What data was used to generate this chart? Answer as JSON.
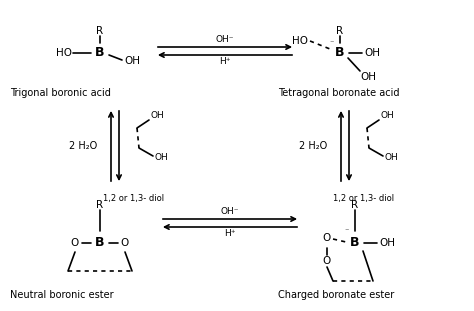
{
  "bg_color": "#ffffff",
  "text_color": "#000000",
  "figsize": [
    4.74,
    3.11
  ],
  "dpi": 100,
  "structures": {
    "trigonal_label": "Trigonal boronic acid",
    "tetragonal_label": "Tetragonal boronate acid",
    "neutral_label": "Neutral boronic ester",
    "charged_label": "Charged boronate ester"
  },
  "eq_top": [
    "OH⁻",
    "H⁺"
  ],
  "eq_bottom": [
    "OH⁻",
    "H⁺"
  ],
  "diol_label": "1,2 or 1,3- diol",
  "water_label": "2 H₂O"
}
